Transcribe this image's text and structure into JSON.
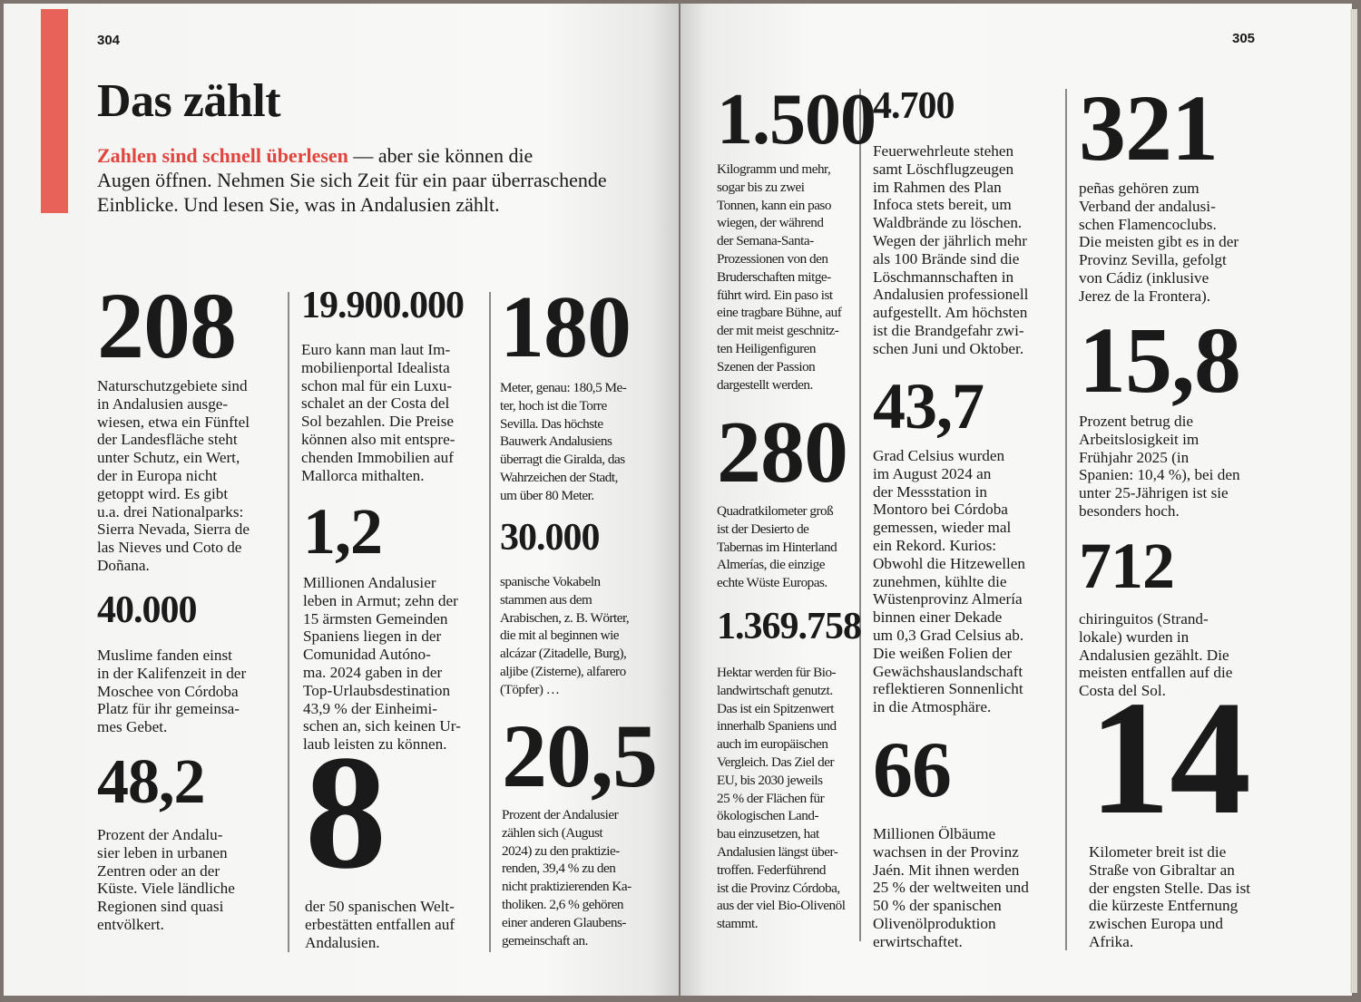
{
  "left_page": {
    "page_number": "304",
    "title": "Das zählt",
    "intro": {
      "highlight": "Zahlen sind schnell überlesen",
      "rest_line1": " — aber sie können die",
      "line2": "Augen öffnen. Nehmen Sie sich Zeit für ein paar überraschende",
      "line3": "Einblicke. Und lesen Sie, was in Andalusien zählt."
    },
    "accent_color": "#e8625a"
  },
  "right_page": {
    "page_number": "305"
  },
  "facts": [
    {
      "number": "208",
      "lines": [
        "Naturschutzgebiete sind",
        "in Andalusien ausge-",
        "wiesen, etwa ein Fünftel",
        "der Landesfläche steht",
        "unter Schutz, ein Wert,",
        "der in Europa nicht",
        "getoppt wird. Es gibt",
        "u.a. drei Nationalparks:",
        "Sierra Nevada, Sierra de",
        "las Nieves und Coto de",
        "Doñana."
      ]
    },
    {
      "number": "40.000",
      "lines": [
        "Muslime fanden einst",
        "in der Kalifenzeit in der",
        "Moschee von Córdoba",
        "Platz für ihr gemeinsa-",
        "mes Gebet."
      ]
    },
    {
      "number": "48,2",
      "lines": [
        "Prozent der Andalu-",
        "sier leben in urbanen",
        "Zentren oder an der",
        "Küste. Viele ländliche",
        "Regionen sind quasi",
        "entvölkert."
      ]
    },
    {
      "number": "19.900.000",
      "lines": [
        "Euro kann man laut Im-",
        "mobilienportal Idealista",
        "schon mal für ein Luxu-",
        "schalet an der Costa del",
        "Sol bezahlen. Die Preise",
        "können also mit entspre-",
        "chenden Immobilien auf",
        "Mallorca mithalten."
      ]
    },
    {
      "number": "1,2",
      "lines": [
        "Millionen Andalusier",
        "leben in Armut; zehn der",
        "15 ärmsten Gemeinden",
        "Spaniens liegen in der",
        "Comunidad Autóno-",
        "ma. 2024 gaben in der",
        "Top-Urlaubsdestination",
        "43,9 % der Einheimi-",
        "schen an, sich keinen Ur-",
        "laub leisten zu können."
      ]
    },
    {
      "number": "8",
      "lines": [
        "der 50 spanischen Welt-",
        "erbestätten entfallen auf",
        "Andalusien."
      ]
    },
    {
      "number": "180",
      "lines": [
        "Meter, genau: 180,5 Me-",
        "ter, hoch ist die Torre",
        "Sevilla. Das höchste",
        "Bauwerk Andalusiens",
        "überragt die Giralda, das",
        "Wahrzeichen der Stadt,",
        "um über 80 Meter."
      ]
    },
    {
      "number": "30.000",
      "lines": [
        "spanische Vokabeln",
        "stammen aus dem",
        "Arabischen, z. B. Wörter,",
        "die mit al beginnen wie",
        "alcázar (Zitadelle, Burg),",
        "aljibe (Zisterne), alfarero",
        "(Töpfer) …"
      ]
    },
    {
      "number": "20,5",
      "lines": [
        "Prozent der Andalusier",
        "zählen sich (August",
        "2024) zu den praktizie-",
        "renden, 39,4 % zu den",
        "nicht praktizierenden Ka-",
        "tholiken. 2,6 % gehören",
        "einer anderen Glaubens-",
        "gemeinschaft an."
      ]
    },
    {
      "number": "1.500",
      "lines": [
        "Kilogramm und mehr,",
        "sogar bis zu zwei",
        "Tonnen, kann ein paso",
        "wiegen, der während",
        "der Semana-Santa-",
        "Prozessionen von den",
        "Bruderschaften mitge-",
        "führt wird. Ein paso ist",
        "eine tragbare Bühne, auf",
        "der mit meist geschnitz-",
        "ten Heiligenfiguren",
        "Szenen der Passion",
        "dargestellt werden."
      ]
    },
    {
      "number": "280",
      "lines": [
        "Quadratkilometer groß",
        "ist der Desierto de",
        "Tabernas im Hinterland",
        "Almerías, die einzige",
        "echte Wüste Europas."
      ]
    },
    {
      "number": "1.369.758",
      "lines": [
        "Hektar werden für Bio-",
        "landwirtschaft genutzt.",
        "Das ist ein Spitzenwert",
        "innerhalb Spaniens und",
        "auch im europäischen",
        "Vergleich. Das Ziel der",
        "EU, bis 2030 jeweils",
        "25 % der Flächen für",
        "ökologischen Land-",
        "bau einzusetzen, hat",
        "Andalusien längst über-",
        "troffen. Federführend",
        "ist die Provinz Córdoba,",
        "aus der viel Bio-Olivenöl",
        "stammt."
      ]
    },
    {
      "number": "4.700",
      "lines": [
        "Feuerwehrleute stehen",
        "samt Löschflugzeugen",
        "im Rahmen des Plan",
        "Infoca stets bereit, um",
        "Waldbrände zu löschen.",
        "Wegen der jährlich mehr",
        "als 100 Brände sind die",
        "Löschmannschaften in",
        "Andalusien professionell",
        "aufgestellt. Am höchsten",
        "ist die Brandgefahr zwi-",
        "schen Juni und Oktober."
      ]
    },
    {
      "number": "43,7",
      "lines": [
        "Grad Celsius wurden",
        "im August 2024 an",
        "der Messstation in",
        "Montoro bei Córdoba",
        "gemessen, wieder mal",
        "ein Rekord. Kurios:",
        "Obwohl die Hitzewellen",
        "zunehmen, kühlte die",
        "Wüstenprovinz Almería",
        "binnen einer Dekade",
        "um 0,3 Grad Celsius ab.",
        "Die weißen Folien der",
        "Gewächshauslandschaft",
        "reflektieren Sonnenlicht",
        "in die Atmosphäre."
      ]
    },
    {
      "number": "66",
      "lines": [
        "Millionen Ölbäume",
        "wachsen in der Provinz",
        "Jaén. Mit ihnen werden",
        "25 % der weltweiten und",
        "50 % der spanischen",
        "Olivenölproduktion",
        "erwirtschaftet."
      ]
    },
    {
      "number": "321",
      "lines": [
        "peñas gehören zum",
        "Verband der andalusi-",
        "schen Flamencoclubs.",
        "Die meisten gibt es in der",
        "Provinz Sevilla, gefolgt",
        "von Cádiz (inklusive",
        "Jerez de la Frontera)."
      ]
    },
    {
      "number": "15,8",
      "lines": [
        "Prozent betrug die",
        "Arbeitslosigkeit im",
        "Frühjahr 2025 (in",
        "Spanien: 10,4 %), bei den",
        "unter 25-Jährigen ist sie",
        "besonders hoch."
      ]
    },
    {
      "number": "712",
      "lines": [
        "chiringuitos (Strand-",
        "lokale) wurden in",
        "Andalusien gezählt. Die",
        "meisten entfallen auf die",
        "Costa del Sol."
      ]
    },
    {
      "number": "14",
      "lines": [
        "Kilometer breit ist die",
        "Straße von Gibraltar an",
        "der engsten Stelle. Das ist",
        "die kürzeste Entfernung",
        "zwischen Europa und",
        "Afrika."
      ]
    }
  ]
}
